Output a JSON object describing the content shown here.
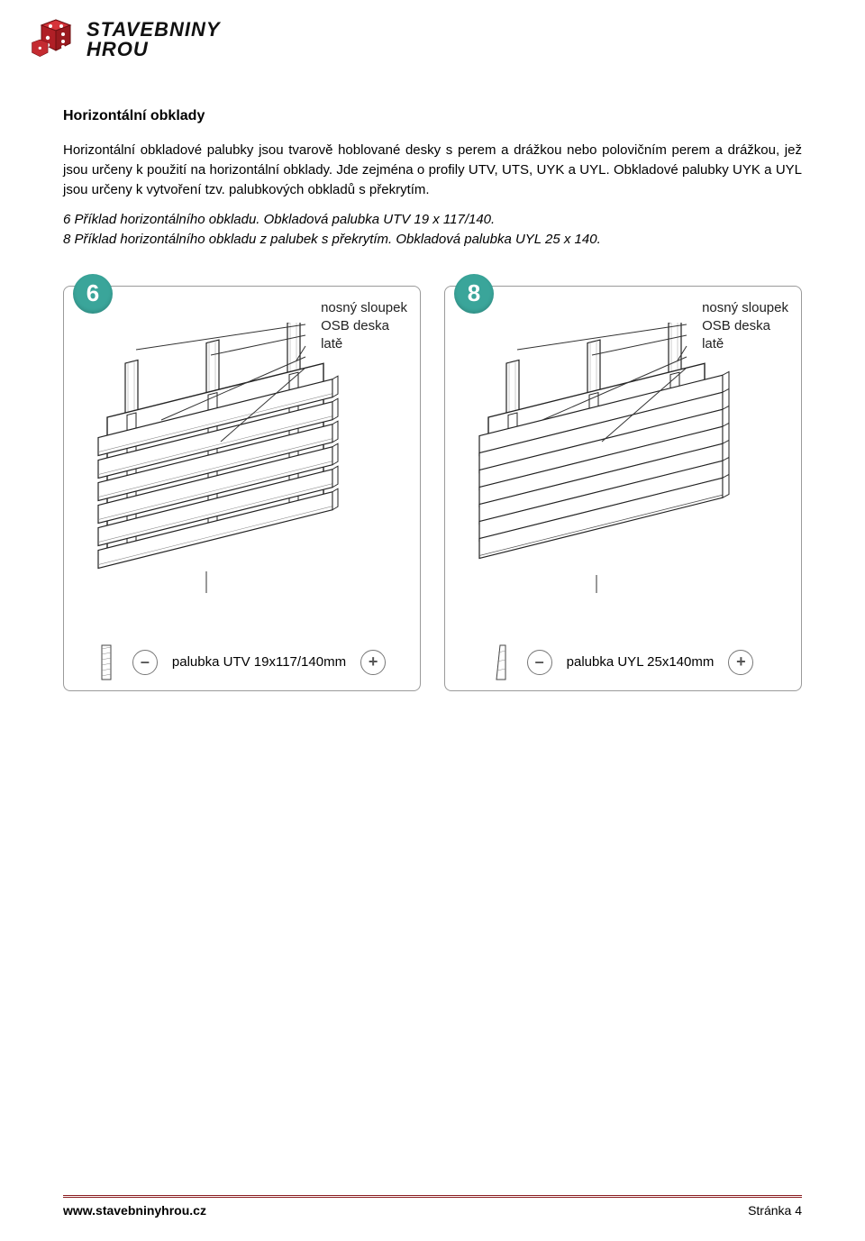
{
  "logo": {
    "line1": "STAVEBNINY",
    "line2": "HROU",
    "cube_color": "#b01f26",
    "text_color": "#111111"
  },
  "heading": "Horizontální obklady",
  "paragraph": "Horizontální obkladové palubky jsou tvarově hoblované desky s perem a drážkou nebo polovičním perem a drážkou, jež jsou určeny k použití na horizontální obklady. Jde zejména o profily UTV, UTS, UYK a UYL. Obkladové palubky UYK a UYL jsou určeny k vytvoření tzv. palubkových obkladů s překrytím.",
  "caption_line1": "6 Příklad horizontálního obkladu. Obkladová palubka UTV 19 x 117/140.",
  "caption_line2": "8 Příklad horizontálního obkladu z palubek s překrytím. Obkladová palubka UYL 25 x 140.",
  "colors": {
    "badge_bg": "#3aa59a",
    "panel_border": "#9a9a9a",
    "line_color": "#222222",
    "fill_color": "#ffffff",
    "hatching": "#888888",
    "rule": "#8a1d20"
  },
  "figures": [
    {
      "badge": "6",
      "legend": [
        "nosný sloupek",
        "OSB deska",
        "latě"
      ],
      "bottom_label": "palubka UTV 19x117/140mm",
      "plank_count": 6,
      "profile_type": "groove"
    },
    {
      "badge": "8",
      "legend": [
        "nosný sloupek",
        "OSB deska",
        "latě"
      ],
      "bottom_label": "palubka UYL 25x140mm",
      "plank_count": 7,
      "profile_type": "wedge"
    }
  ],
  "footer": {
    "site": "www.stavebninyhrou.cz",
    "page": "Stránka 4"
  }
}
